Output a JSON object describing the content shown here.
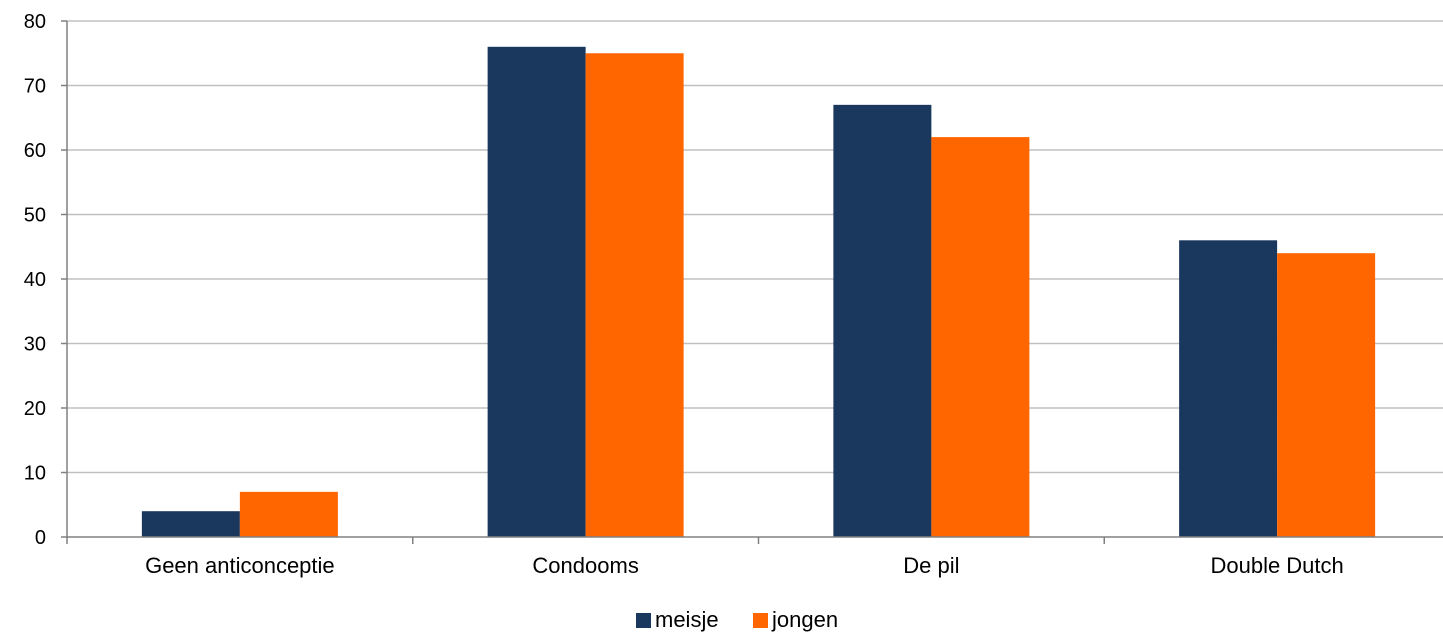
{
  "chart_data": {
    "type": "bar",
    "categories": [
      "Geen anticonceptie",
      "Condooms",
      "De pil",
      "Double Dutch"
    ],
    "series": [
      {
        "name": "meisje",
        "values": [
          4,
          76,
          67,
          46
        ],
        "color": "#1a375e"
      },
      {
        "name": "jongen",
        "values": [
          7,
          75,
          62,
          44
        ],
        "color": "#ff6600"
      }
    ],
    "ylim": [
      0,
      80
    ],
    "yticks": [
      0,
      10,
      20,
      30,
      40,
      50,
      60,
      70,
      80
    ],
    "grid": true,
    "legend_position": "bottom"
  }
}
